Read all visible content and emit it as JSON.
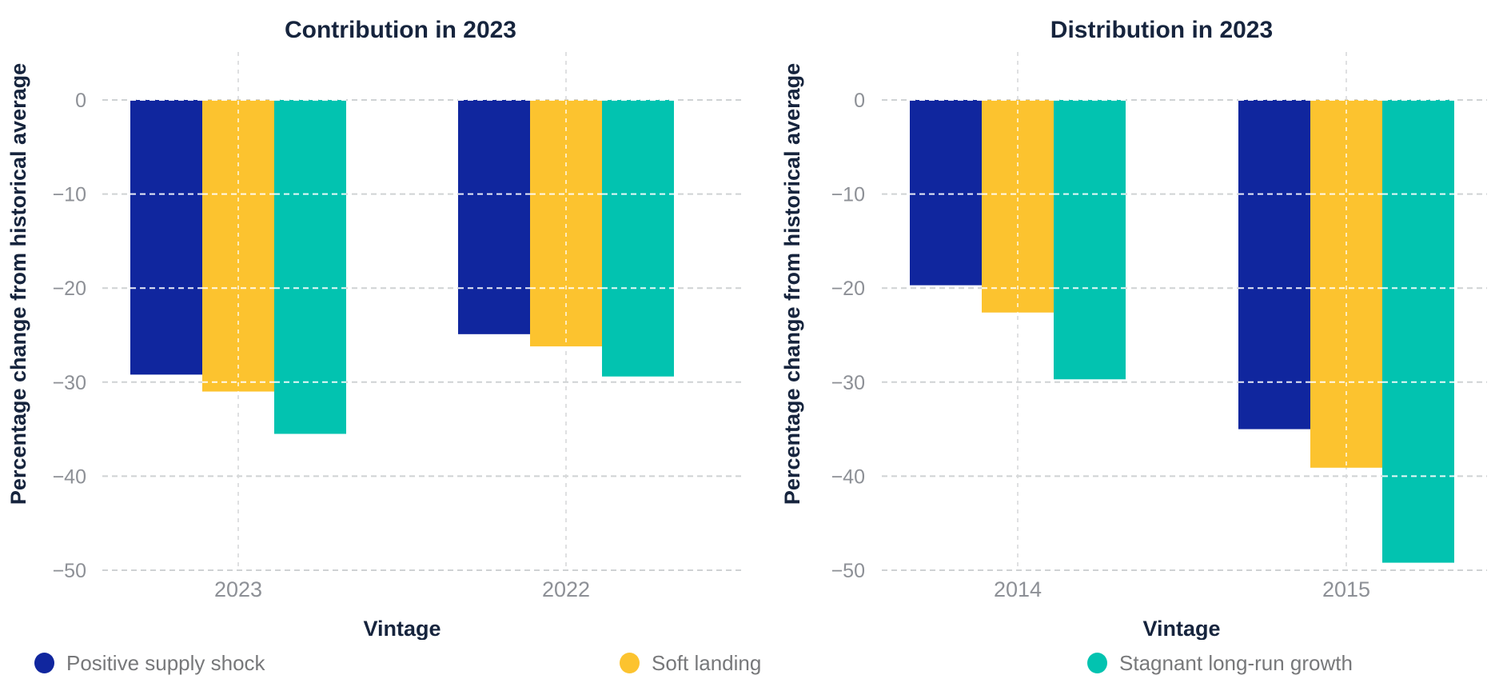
{
  "figure": {
    "legend": [
      {
        "label": "Positive supply shock",
        "color": "#10269E"
      },
      {
        "label": "Soft landing",
        "color": "#FCC32F"
      },
      {
        "label": "Stagnant long-run growth",
        "color": "#02C3B0"
      }
    ],
    "colors": {
      "title_text": "#16243D",
      "axis_title_text": "#16243D",
      "tick_text": "#8D9096",
      "legend_text": "#77787A",
      "grid_line": "#CFD2D4",
      "grid_line_vertical": "#D7D9DA",
      "grid_overlay_on_bars": "#FFFFFF",
      "background": "#FFFFFF"
    }
  },
  "chart_data": [
    {
      "type": "bar",
      "title": "Contribution in 2023",
      "xlabel": "Vintage",
      "ylabel": "Percentage change from historical average",
      "categories": [
        "2023",
        "2022"
      ],
      "series": [
        {
          "name": "Positive supply shock",
          "color": "#10269E",
          "values": [
            -29.2,
            -24.9
          ]
        },
        {
          "name": "Soft landing",
          "color": "#FCC32F",
          "values": [
            -31.0,
            -26.2
          ]
        },
        {
          "name": "Stagnant long-run growth",
          "color": "#02C3B0",
          "values": [
            -35.5,
            -29.4
          ]
        }
      ],
      "ylim": [
        -50,
        0
      ],
      "yticks": [
        0,
        -10,
        -20,
        -30,
        -40,
        -50
      ],
      "ytick_labels": [
        "0",
        "−10",
        "−20",
        "−30",
        "−40",
        "−50"
      ],
      "grid": "dashed",
      "legend_position": "bottom"
    },
    {
      "type": "bar",
      "title": "Distribution in 2023",
      "xlabel": "Vintage",
      "ylabel": "Percentage change from historical average",
      "categories": [
        "2014",
        "2015"
      ],
      "series": [
        {
          "name": "Positive supply shock",
          "color": "#10269E",
          "values": [
            -19.7,
            -35.0
          ]
        },
        {
          "name": "Soft landing",
          "color": "#FCC32F",
          "values": [
            -22.6,
            -39.1
          ]
        },
        {
          "name": "Stagnant long-run growth",
          "color": "#02C3B0",
          "values": [
            -29.7,
            -49.2
          ]
        }
      ],
      "ylim": [
        -50,
        0
      ],
      "yticks": [
        0,
        -10,
        -20,
        -30,
        -40,
        -50
      ],
      "ytick_labels": [
        "0",
        "−10",
        "−20",
        "−30",
        "−40",
        "−50"
      ],
      "grid": "dashed",
      "legend_position": "bottom"
    }
  ]
}
